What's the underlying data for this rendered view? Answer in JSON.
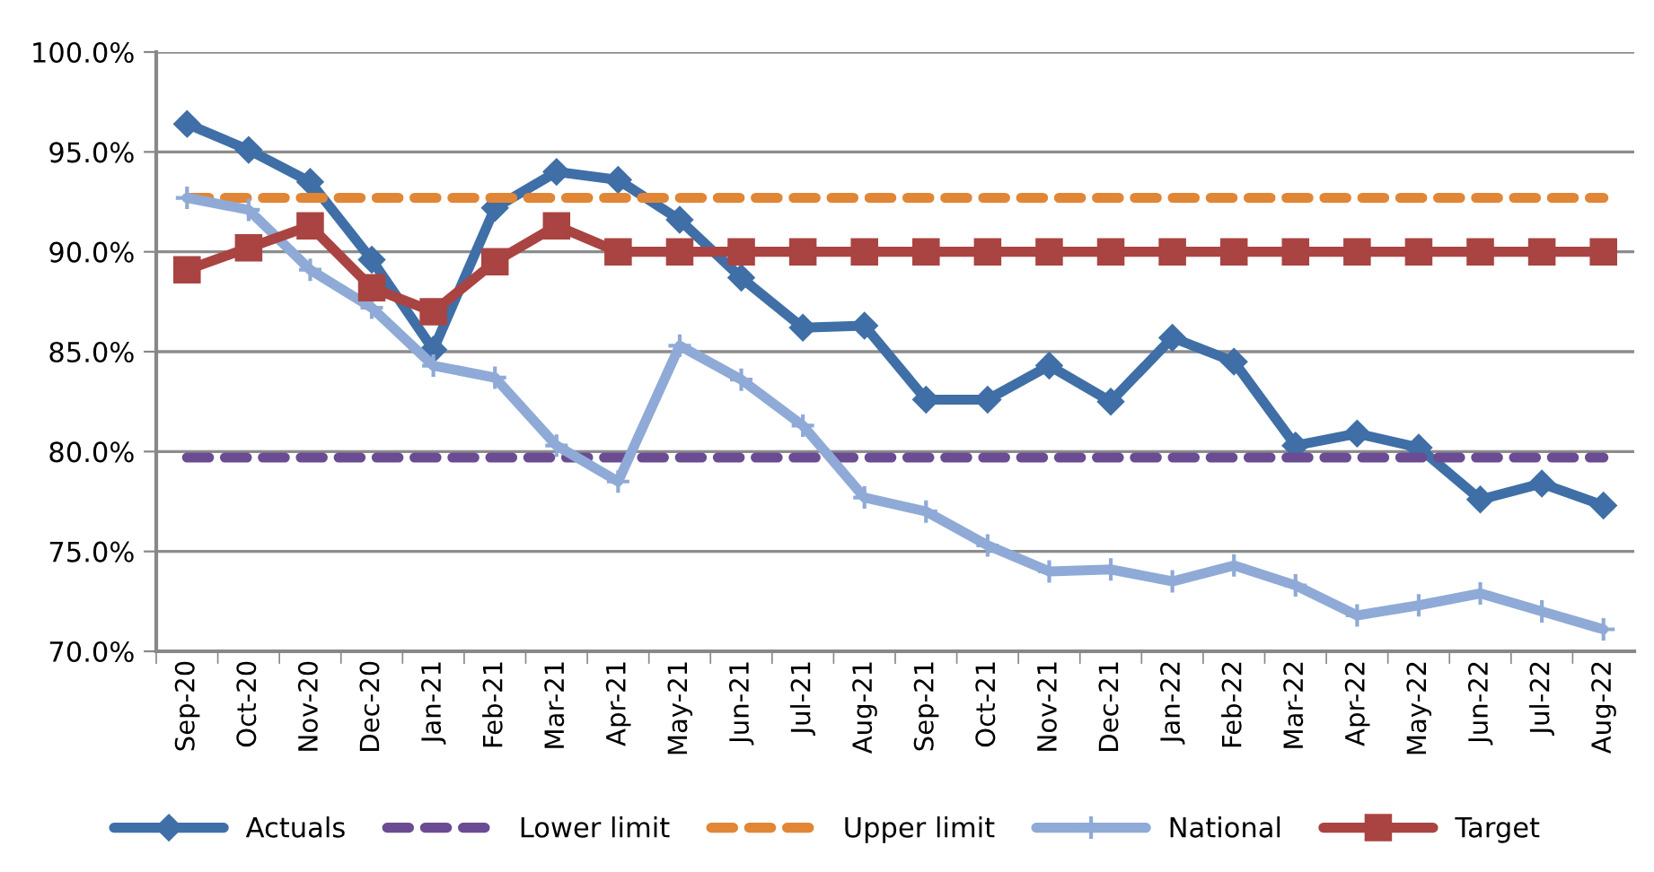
{
  "chart_data": {
    "type": "line",
    "categories": [
      "Sep-20",
      "Oct-20",
      "Nov-20",
      "Dec-20",
      "Jan-21",
      "Feb-21",
      "Mar-21",
      "Apr-21",
      "May-21",
      "Jun-21",
      "Jul-21",
      "Aug-21",
      "Sep-21",
      "Oct-21",
      "Nov-21",
      "Dec-21",
      "Jan-22",
      "Feb-22",
      "Mar-22",
      "Apr-22",
      "May-22",
      "Jun-22",
      "Jul-22",
      "Aug-22"
    ],
    "series": [
      {
        "name": "Actuals",
        "color": "#3f6fa6",
        "marker": "diamond",
        "line_style": "solid",
        "values": [
          96.4,
          95.1,
          93.5,
          89.6,
          85.1,
          92.2,
          94.0,
          93.6,
          91.6,
          88.7,
          86.2,
          86.3,
          82.6,
          82.6,
          84.3,
          82.5,
          85.7,
          84.5,
          80.3,
          80.9,
          80.2,
          77.6,
          78.4,
          77.3
        ]
      },
      {
        "name": "Lower limit",
        "color": "#6b4c93",
        "marker": "none",
        "line_style": "dashed",
        "values": [
          79.7,
          79.7,
          79.7,
          79.7,
          79.7,
          79.7,
          79.7,
          79.7,
          79.7,
          79.7,
          79.7,
          79.7,
          79.7,
          79.7,
          79.7,
          79.7,
          79.7,
          79.7,
          79.7,
          79.7,
          79.7,
          79.7,
          79.7,
          79.7
        ]
      },
      {
        "name": "Upper limit",
        "color": "#e08636",
        "marker": "none",
        "line_style": "dashed",
        "values": [
          92.7,
          92.7,
          92.7,
          92.7,
          92.7,
          92.7,
          92.7,
          92.7,
          92.7,
          92.7,
          92.7,
          92.7,
          92.7,
          92.7,
          92.7,
          92.7,
          92.7,
          92.7,
          92.7,
          92.7,
          92.7,
          92.7,
          92.7,
          92.7
        ]
      },
      {
        "name": "National",
        "color": "#8faad6",
        "marker": "cross",
        "line_style": "solid",
        "values": [
          92.7,
          92.1,
          89.1,
          87.2,
          84.3,
          83.7,
          80.3,
          78.5,
          85.3,
          83.6,
          81.3,
          77.7,
          77.0,
          75.3,
          74.0,
          74.1,
          73.5,
          74.3,
          73.3,
          71.8,
          72.3,
          72.9,
          72.0,
          71.1
        ]
      },
      {
        "name": "Target",
        "color": "#a94442",
        "marker": "square",
        "line_style": "solid",
        "values": [
          89.1,
          90.2,
          91.3,
          88.2,
          87.0,
          89.5,
          91.3,
          90.0,
          90.0,
          90.0,
          90.0,
          90.0,
          90.0,
          90.0,
          90.0,
          90.0,
          90.0,
          90.0,
          90.0,
          90.0,
          90.0,
          90.0,
          90.0,
          90.0
        ]
      }
    ],
    "ylim": [
      70,
      100
    ],
    "yticks": [
      {
        "value": 70,
        "label": "70.0%"
      },
      {
        "value": 75,
        "label": "75.0%"
      },
      {
        "value": 80,
        "label": "80.0%"
      },
      {
        "value": 85,
        "label": "85.0%"
      },
      {
        "value": 90,
        "label": "90.0%"
      },
      {
        "value": 95,
        "label": "95.0%"
      },
      {
        "value": 100,
        "label": "100.0%"
      }
    ],
    "grid": "y",
    "legend": "bottom"
  }
}
